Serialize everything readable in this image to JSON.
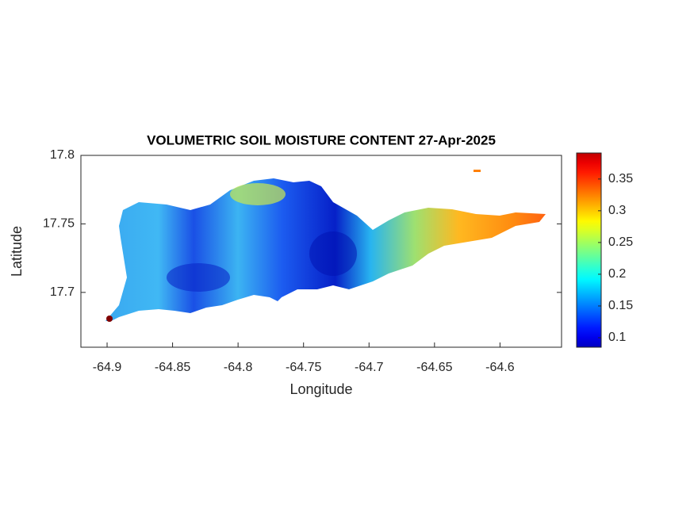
{
  "chart_data": {
    "type": "map",
    "title": "VOLUMETRIC SOIL MOISTURE CONTENT 27-Apr-2025",
    "xlabel": "Longitude",
    "ylabel": "Latitude",
    "xlim": [
      -64.92,
      -64.553
    ],
    "xticks": [
      -64.9,
      -64.85,
      -64.8,
      -64.75,
      -64.7,
      -64.65,
      -64.6
    ],
    "ylim": [
      17.66,
      17.8
    ],
    "yticks": [
      17.7,
      17.75,
      17.8
    ],
    "colormap": "jet",
    "clim": [
      0.085,
      0.391
    ],
    "cticks": [
      0.1,
      0.15,
      0.2,
      0.25,
      0.3,
      0.35
    ]
  }
}
